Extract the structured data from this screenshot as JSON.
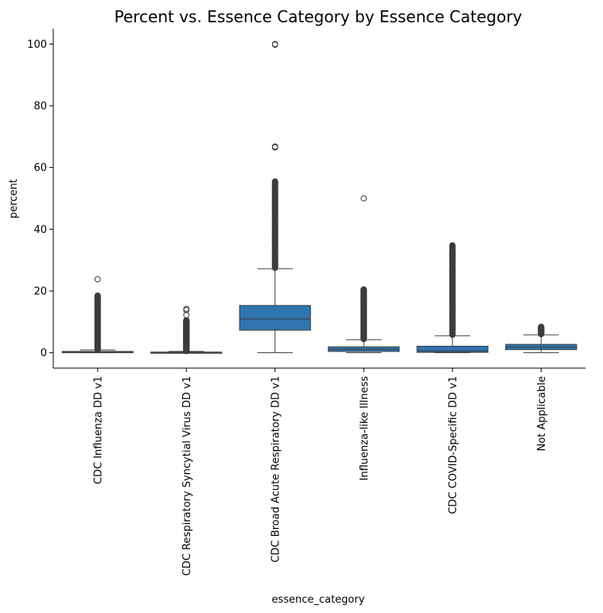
{
  "chart_data": {
    "type": "box",
    "title": "Percent vs. Essence Category by Essence Category",
    "xlabel": "essence_category",
    "ylabel": "percent",
    "ylim": [
      -5,
      105
    ],
    "yticks": [
      0,
      20,
      40,
      60,
      80,
      100
    ],
    "grid": false,
    "box_color": "#2e75b0",
    "categories": [
      "CDC Influenza DD v1",
      "CDC Respiratory Syncytial Virus DD v1",
      "CDC Broad Acute Respiratory DD v1",
      "Influenza-like Illness",
      "CDC COVID-Specific DD v1",
      "Not Applicable"
    ],
    "boxes": [
      {
        "min": 0,
        "q1": 0.0,
        "median": 0.2,
        "q3": 0.4,
        "max": 0.9,
        "outlier_range": [
          1.0,
          18.5
        ],
        "outliers": [
          23.8
        ]
      },
      {
        "min": 0,
        "q1": 0.0,
        "median": 0.05,
        "q3": 0.2,
        "max": 0.4,
        "outlier_range": [
          0.5,
          10.5
        ],
        "outliers": [
          12.2,
          13.8,
          14.2
        ]
      },
      {
        "min": 0,
        "q1": 7.3,
        "median": 10.9,
        "q3": 15.3,
        "max": 27.2,
        "outlier_range": [
          27.5,
          55.5
        ],
        "outliers": [
          66.5,
          66.8,
          99.8,
          100
        ]
      },
      {
        "min": 0,
        "q1": 0.4,
        "median": 1.1,
        "q3": 1.9,
        "max": 4.2,
        "outlier_range": [
          4.4,
          20.5
        ],
        "outliers": [
          50.0
        ]
      },
      {
        "min": 0,
        "q1": 0.1,
        "median": 0.6,
        "q3": 2.1,
        "max": 5.5,
        "outlier_range": [
          5.8,
          34.8
        ],
        "outliers": []
      },
      {
        "min": 0,
        "q1": 1.0,
        "median": 1.8,
        "q3": 2.7,
        "max": 5.8,
        "outlier_range": [
          6.0,
          8.4
        ],
        "outliers": []
      }
    ]
  }
}
